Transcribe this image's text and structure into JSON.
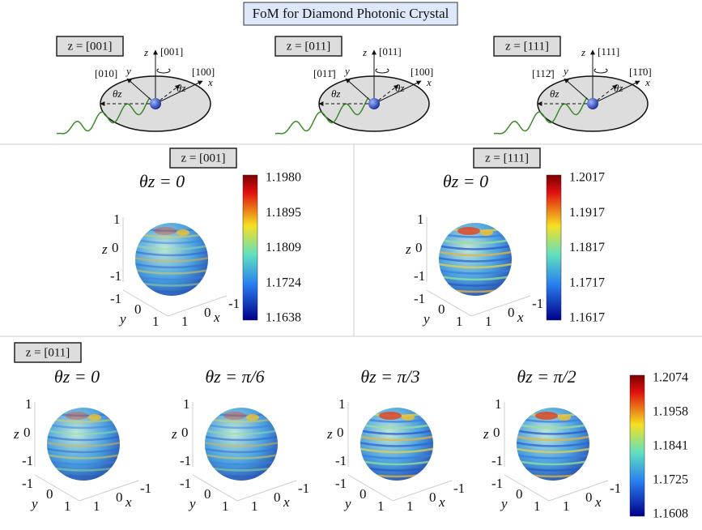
{
  "title": "FoM for Diamond Photonic Crystal",
  "diagrams": [
    {
      "label": "z = [001]",
      "axis_z": "z",
      "dir_z": "[001]",
      "axis_x": "x",
      "dir_x": "[100]",
      "axis_y": "y",
      "dir_y": "[010]",
      "angle_left": "θz",
      "angle_right": "θz"
    },
    {
      "label": "z = [011]",
      "axis_z": "z",
      "dir_z": "[011]",
      "axis_x": "x",
      "dir_x": "[100]",
      "axis_y": "y",
      "dir_y": "[011̄]",
      "angle_left": "θz",
      "angle_right": "θz"
    },
    {
      "label": "z = [111]",
      "axis_z": "z",
      "dir_z": "[111]",
      "axis_x": "x",
      "dir_x": "[11̄0]",
      "axis_y": "y",
      "dir_y": "[112̄]",
      "angle_left": "θz",
      "angle_right": "θz"
    }
  ],
  "middle_panels": [
    {
      "label": "z = [001]",
      "title": "θz = 0",
      "axes": {
        "z": "z",
        "y": "y",
        "x": "x",
        "z_ticks": [
          "1",
          "0",
          "-1"
        ],
        "y_ticks": [
          "-1",
          "0",
          "1"
        ],
        "x_ticks": [
          "1",
          "0",
          "-1"
        ]
      },
      "colorbar": [
        "1.1980",
        "1.1895",
        "1.1809",
        "1.1724",
        "1.1638"
      ]
    },
    {
      "label": "z = [111]",
      "title": "θz = 0",
      "axes": {
        "z": "z",
        "y": "y",
        "x": "x",
        "z_ticks": [
          "1",
          "0",
          "-1"
        ],
        "y_ticks": [
          "-1",
          "0",
          "1"
        ],
        "x_ticks": [
          "1",
          "0",
          "-1"
        ]
      },
      "colorbar": [
        "1.2017",
        "1.1917",
        "1.1817",
        "1.1717",
        "1.1617"
      ]
    }
  ],
  "bottom": {
    "label": "z = [011]",
    "panels": [
      {
        "title": "θz = 0",
        "axes": {
          "z": "z",
          "y": "y",
          "x": "x",
          "z_ticks": [
            "1",
            "0",
            "-1"
          ],
          "y_ticks": [
            "-1",
            "0",
            "1"
          ],
          "x_ticks": [
            "1",
            "0",
            "-1"
          ]
        }
      },
      {
        "title": "θz = π/6",
        "axes": {
          "z": "z",
          "y": "y",
          "x": "x",
          "z_ticks": [
            "1",
            "0",
            "-1"
          ],
          "y_ticks": [
            "-1",
            "0",
            "1"
          ],
          "x_ticks": [
            "1",
            "0",
            "-1"
          ]
        }
      },
      {
        "title": "θz = π/3",
        "axes": {
          "z": "z",
          "y": "y",
          "x": "x",
          "z_ticks": [
            "1",
            "0",
            "-1"
          ],
          "y_ticks": [
            "-1",
            "0",
            "1"
          ],
          "x_ticks": [
            "1",
            "0",
            "-1"
          ]
        }
      },
      {
        "title": "θz = π/2",
        "axes": {
          "z": "z",
          "y": "y",
          "x": "x",
          "z_ticks": [
            "1",
            "0",
            "-1"
          ],
          "y_ticks": [
            "-1",
            "0",
            "1"
          ],
          "x_ticks": [
            "1",
            "0",
            "-1"
          ]
        }
      }
    ],
    "colorbar": [
      "1.2074",
      "1.1958",
      "1.1841",
      "1.1725",
      "1.1608"
    ]
  }
}
